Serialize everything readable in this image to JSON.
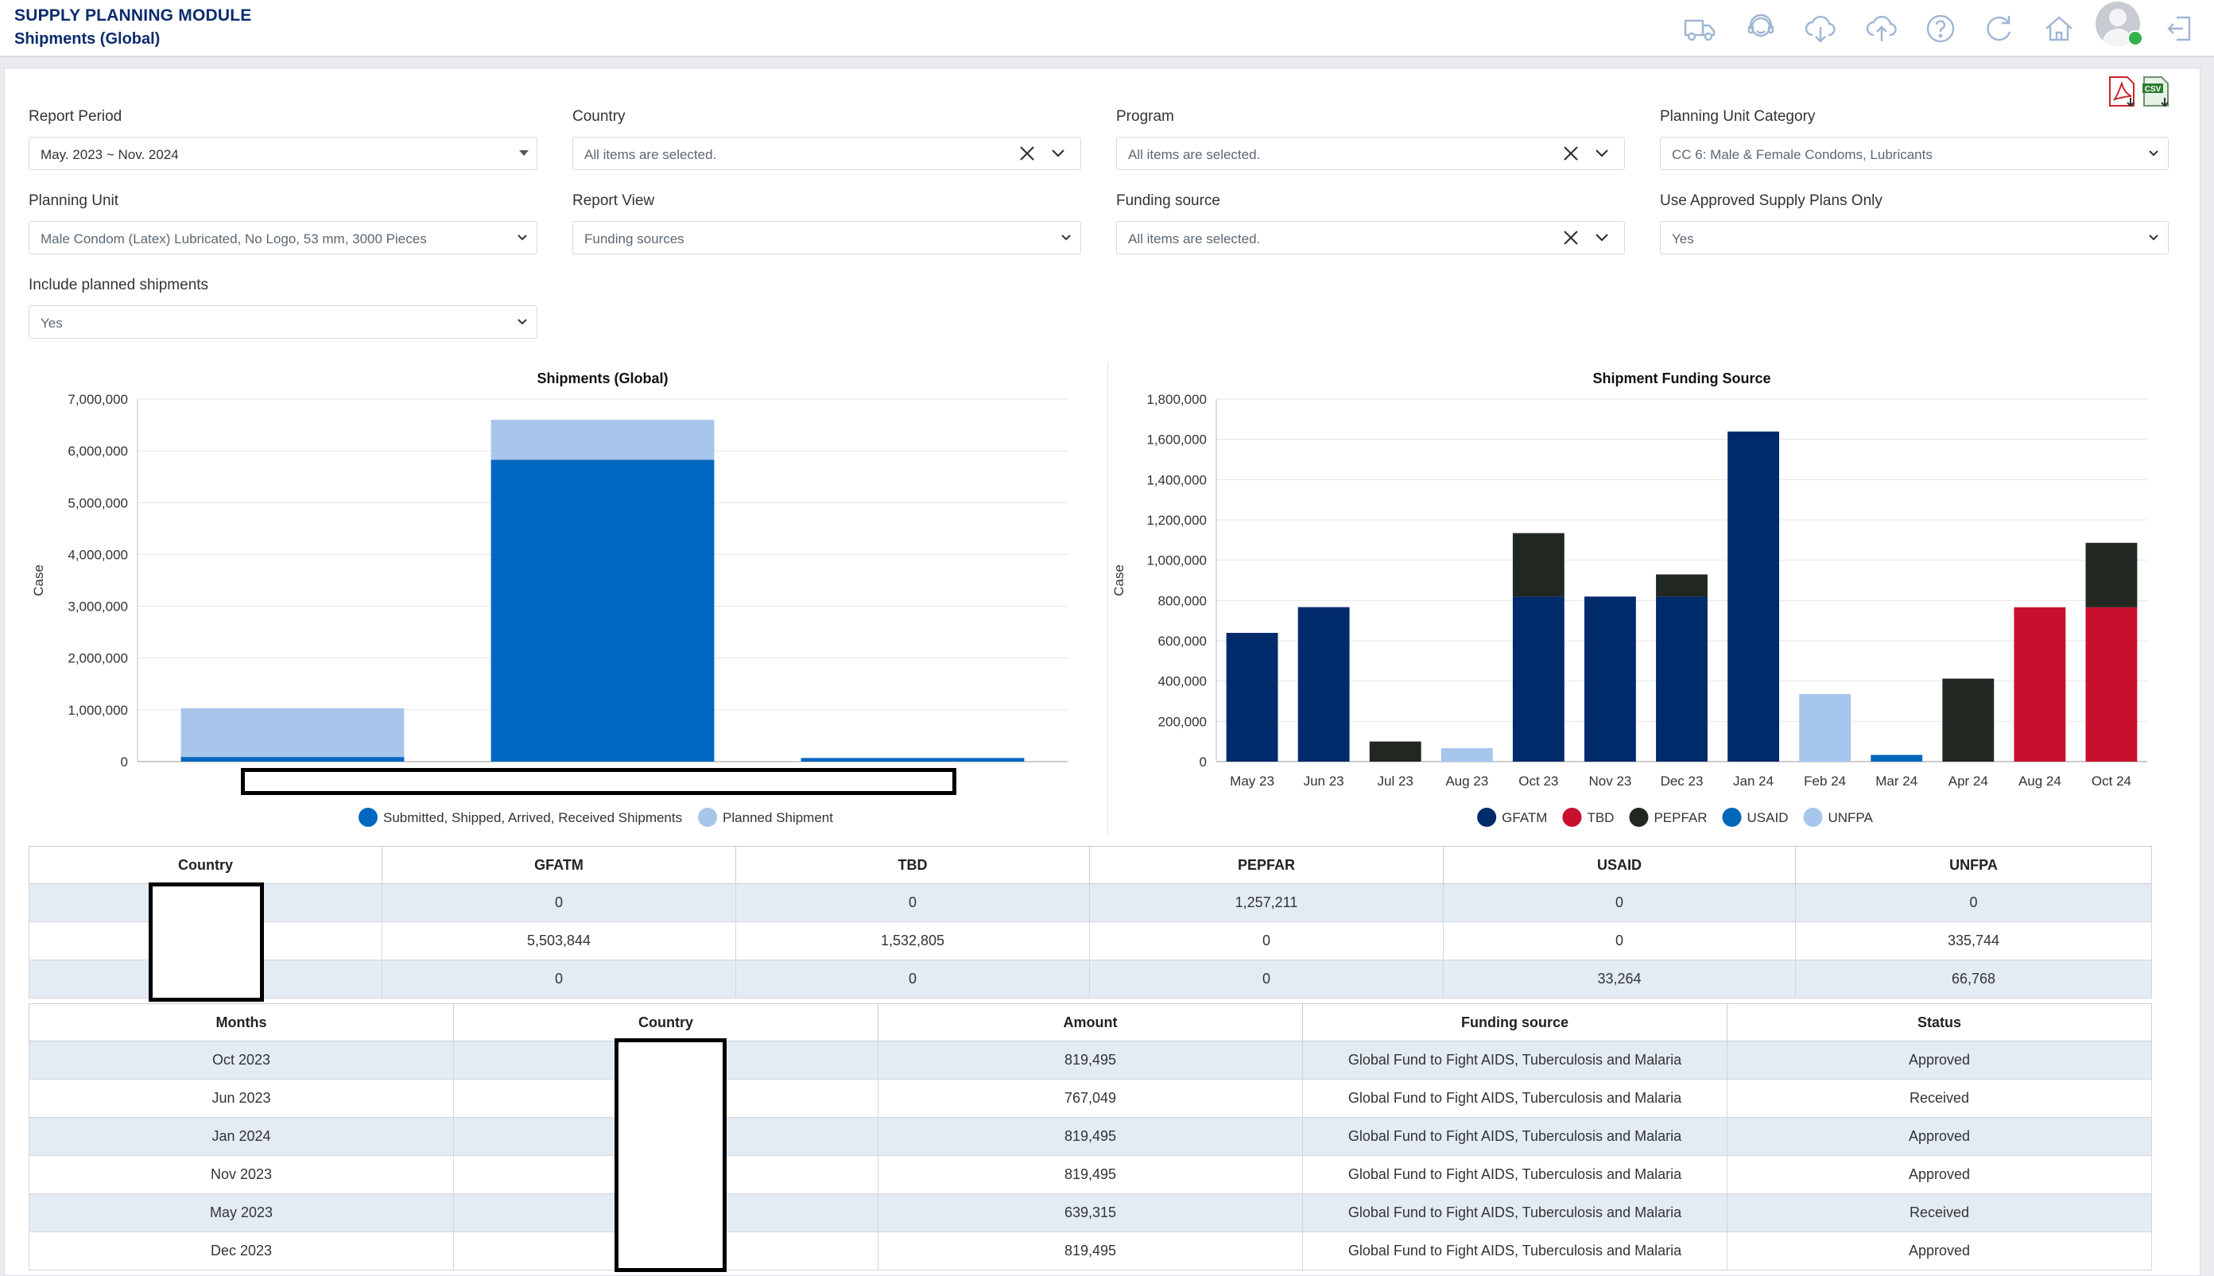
{
  "header": {
    "module_title": "SUPPLY PLANNING MODULE",
    "page_title": "Shipments (Global)",
    "icons": [
      "truck-icon",
      "support-agent-icon",
      "cloud-download-icon",
      "cloud-upload-icon",
      "help-icon",
      "refresh-icon",
      "home-icon",
      "user-avatar-icon",
      "logout-icon"
    ]
  },
  "export": {
    "icons": [
      "pdf-export-icon",
      "csv-export-icon"
    ],
    "csv_text": "CSV"
  },
  "filters": {
    "report_period": {
      "label": "Report Period",
      "value": "May. 2023 ~ Nov. 2024"
    },
    "country": {
      "label": "Country",
      "value": "All items are selected."
    },
    "program": {
      "label": "Program",
      "value": "All items are selected."
    },
    "planning_unit_category": {
      "label": "Planning Unit Category",
      "value": "CC 6: Male & Female Condoms, Lubricants"
    },
    "planning_unit": {
      "label": "Planning Unit",
      "value": "Male Condom (Latex) Lubricated, No Logo, 53 mm, 3000 Pieces"
    },
    "report_view": {
      "label": "Report View",
      "value": "Funding sources"
    },
    "funding_source": {
      "label": "Funding source",
      "value": "All items are selected."
    },
    "use_approved": {
      "label": "Use Approved Supply Plans Only",
      "value": "Yes"
    },
    "include_planned": {
      "label": "Include planned shipments",
      "value": "Yes"
    }
  },
  "chart_data": [
    {
      "type": "bar",
      "stacked": true,
      "title": "Shipments (Global)",
      "ylabel": "Case",
      "ylim": [
        0,
        7000000
      ],
      "yticks": [
        "7,000,000",
        "6,000,000",
        "5,000,000",
        "4,000,000",
        "3,000,000",
        "2,000,000",
        "1,000,000",
        "0"
      ],
      "categories": [
        "",
        "",
        ""
      ],
      "series": [
        {
          "name": "Submitted, Shipped, Arrived, Received Shipments",
          "color": "#0067c0",
          "values": [
            90000,
            5830000,
            70000
          ]
        },
        {
          "name": "Planned Shipment",
          "color": "#a8c6ec",
          "values": [
            940000,
            770000,
            0
          ]
        }
      ],
      "legend": "bottom"
    },
    {
      "type": "bar",
      "stacked": true,
      "title": "Shipment Funding Source",
      "ylabel": "Case",
      "ylim": [
        0,
        1800000
      ],
      "yticks": [
        "1,800,000",
        "1,600,000",
        "1,400,000",
        "1,200,000",
        "1,000,000",
        "800,000",
        "600,000",
        "400,000",
        "200,000",
        "0"
      ],
      "categories": [
        "May 23",
        "Jun 23",
        "Jul 23",
        "Aug 23",
        "Oct 23",
        "Nov 23",
        "Dec 23",
        "Jan 24",
        "Feb 24",
        "Mar 24",
        "Apr 24",
        "Aug 24",
        "Oct 24"
      ],
      "series": [
        {
          "name": "GFATM",
          "color": "#002b6b",
          "values": [
            639315,
            767049,
            0,
            0,
            819495,
            819495,
            819495,
            1638990,
            0,
            0,
            0,
            0,
            0
          ]
        },
        {
          "name": "TBD",
          "color": "#c8102e",
          "values": [
            0,
            0,
            0,
            0,
            0,
            0,
            0,
            0,
            0,
            0,
            0,
            766403,
            766402
          ]
        },
        {
          "name": "PEPFAR",
          "color": "#212721",
          "values": [
            0,
            0,
            100000,
            0,
            315000,
            0,
            110000,
            0,
            0,
            0,
            412211,
            0,
            320000
          ]
        },
        {
          "name": "USAID",
          "color": "#0067b9",
          "values": [
            0,
            0,
            0,
            0,
            0,
            0,
            0,
            0,
            0,
            33264,
            0,
            0,
            0
          ]
        },
        {
          "name": "UNFPA",
          "color": "#a7c6ed",
          "values": [
            0,
            0,
            0,
            66768,
            0,
            0,
            0,
            0,
            335744,
            0,
            0,
            0,
            0
          ]
        }
      ],
      "legend": "bottom"
    }
  ],
  "summary_table": {
    "columns": [
      "Country",
      "GFATM",
      "TBD",
      "PEPFAR",
      "USAID",
      "UNFPA"
    ],
    "rows": [
      [
        "",
        "0",
        "0",
        "1,257,211",
        "0",
        "0"
      ],
      [
        "",
        "5,503,844",
        "1,532,805",
        "0",
        "0",
        "335,744"
      ],
      [
        "",
        "0",
        "0",
        "0",
        "33,264",
        "66,768"
      ]
    ]
  },
  "detail_table": {
    "columns": [
      "Months",
      "Country",
      "Amount",
      "Funding source",
      "Status"
    ],
    "rows": [
      [
        "Oct 2023",
        "",
        "819,495",
        "Global Fund to Fight AIDS, Tuberculosis and Malaria",
        "Approved"
      ],
      [
        "Jun 2023",
        "",
        "767,049",
        "Global Fund to Fight AIDS, Tuberculosis and Malaria",
        "Received"
      ],
      [
        "Jan 2024",
        "",
        "819,495",
        "Global Fund to Fight AIDS, Tuberculosis and Malaria",
        "Approved"
      ],
      [
        "Nov 2023",
        "",
        "819,495",
        "Global Fund to Fight AIDS, Tuberculosis and Malaria",
        "Approved"
      ],
      [
        "May 2023",
        "",
        "639,315",
        "Global Fund to Fight AIDS, Tuberculosis and Malaria",
        "Received"
      ],
      [
        "Dec 2023",
        "",
        "819,495",
        "Global Fund to Fight AIDS, Tuberculosis and Malaria",
        "Approved"
      ]
    ]
  }
}
